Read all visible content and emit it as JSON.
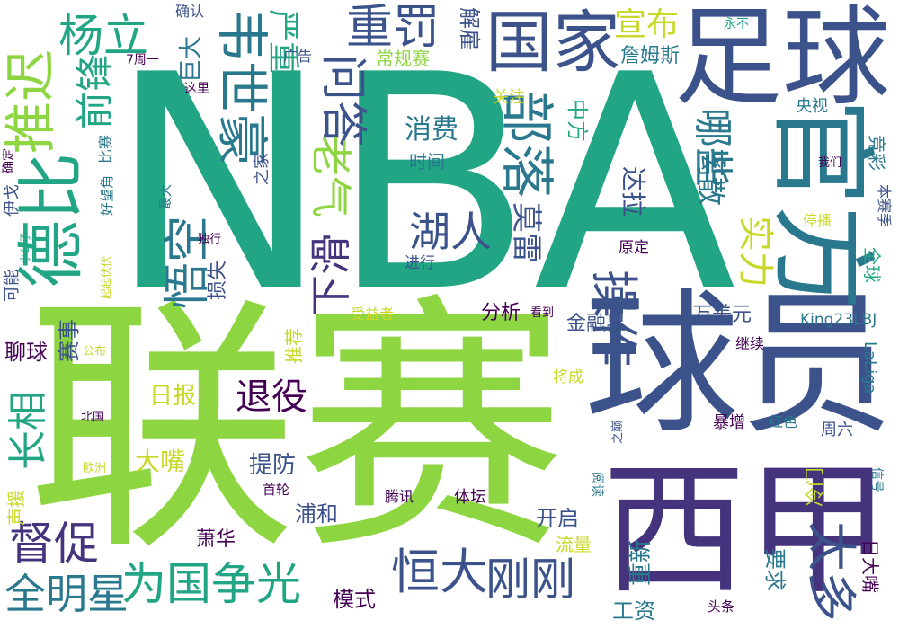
{
  "palette": [
    "#21a585",
    "#8ed641",
    "#3b528b",
    "#46337e",
    "#2a788e",
    "#c8d829",
    "#5ec962",
    "#440154",
    "#3b8b8c"
  ],
  "words": [
    {
      "text": "NBA",
      "color": "#21a585"
    },
    {
      "text": "联赛",
      "color": "#8ed641"
    },
    {
      "text": "球员",
      "color": "#3b528b"
    },
    {
      "text": "西甲",
      "color": "#46337e"
    },
    {
      "text": "足球",
      "color": "#3b528b"
    },
    {
      "text": "官方",
      "color": "#2a788e"
    },
    {
      "text": "国家",
      "color": "#3b528b"
    },
    {
      "text": "德比",
      "color": "#21a585"
    },
    {
      "text": "推迟",
      "color": "#8ed641"
    },
    {
      "text": "部落",
      "color": "#2a788e"
    },
    {
      "text": "韦世豪",
      "color": "#2a788e"
    },
    {
      "text": "重罚",
      "color": "#3b528b"
    },
    {
      "text": "杨立",
      "color": "#21a585"
    },
    {
      "text": "问答",
      "color": "#3b528b"
    },
    {
      "text": "前锋",
      "color": "#21a585"
    },
    {
      "text": "严重",
      "color": "#21a585"
    },
    {
      "text": "宣布",
      "color": "#c8d829"
    },
    {
      "text": "悟空",
      "color": "#2a788e"
    },
    {
      "text": "下滑",
      "color": "#46337e"
    },
    {
      "text": "老气",
      "color": "#8ed641"
    },
    {
      "text": "湖人",
      "color": "#3b528b"
    },
    {
      "text": "操作",
      "color": "#3b528b"
    },
    {
      "text": "哪些",
      "color": "#2a788e"
    },
    {
      "text": "离散",
      "color": "#2a788e"
    },
    {
      "text": "实力",
      "color": "#c8d829"
    },
    {
      "text": "为国争光",
      "color": "#21a585"
    },
    {
      "text": "全明星",
      "color": "#2a788e"
    },
    {
      "text": "督促",
      "color": "#46337e"
    },
    {
      "text": "恒大",
      "color": "#3b528b"
    },
    {
      "text": "刚刚",
      "color": "#3b528b"
    },
    {
      "text": "太多",
      "color": "#3b528b"
    },
    {
      "text": "长相",
      "color": "#21a585"
    },
    {
      "text": "退役",
      "color": "#440154"
    },
    {
      "text": "詹姆斯",
      "color": "#2a788e"
    },
    {
      "text": "解雇",
      "color": "#3b528b"
    },
    {
      "text": "莫雷",
      "color": "#3b528b"
    },
    {
      "text": "达拉",
      "color": "#3b528b"
    },
    {
      "text": "中方",
      "color": "#21a585"
    },
    {
      "text": "消费",
      "color": "#2a788e"
    },
    {
      "text": "时间",
      "color": "#2a788e"
    },
    {
      "text": "巨大",
      "color": "#2a788e"
    },
    {
      "text": "常规赛",
      "color": "#8ed641"
    },
    {
      "text": "关注",
      "color": "#c8d829"
    },
    {
      "text": "广告",
      "color": "#3b528b"
    },
    {
      "text": "确认",
      "color": "#3b528b"
    },
    {
      "text": "永不",
      "color": "#21a585"
    },
    {
      "text": "央视",
      "color": "#2a788e"
    },
    {
      "text": "竞彩",
      "color": "#2a788e"
    },
    {
      "text": "我们",
      "color": "#440154"
    },
    {
      "text": "本赛季",
      "color": "#3b528b"
    },
    {
      "text": "停播",
      "color": "#c8d829"
    },
    {
      "text": "全球",
      "color": "#21a585"
    },
    {
      "text": "原定",
      "color": "#440154"
    },
    {
      "text": "进行",
      "color": "#3b528b"
    },
    {
      "text": "损失",
      "color": "#3b528b"
    },
    {
      "text": "独行",
      "color": "#440154"
    },
    {
      "text": "之家",
      "color": "#3b528b"
    },
    {
      "text": "比赛",
      "color": "#2a788e"
    },
    {
      "text": "好望角",
      "color": "#2a788e"
    },
    {
      "text": "确定",
      "color": "#440154"
    },
    {
      "text": "伊戈",
      "color": "#3b528b"
    },
    {
      "text": "小公子",
      "color": "#21a585"
    },
    {
      "text": "可能",
      "color": "#3b528b"
    },
    {
      "text": "起起伏伏",
      "color": "#c8d829"
    },
    {
      "text": "赛事",
      "color": "#3b528b"
    },
    {
      "text": "分析",
      "color": "#440154"
    },
    {
      "text": "看到",
      "color": "#440154"
    },
    {
      "text": "受益者",
      "color": "#c8d829"
    },
    {
      "text": "金融界",
      "color": "#3b528b"
    },
    {
      "text": "万美元",
      "color": "#3b528b"
    },
    {
      "text": "King23LBJ",
      "color": "#2a788e"
    },
    {
      "text": "LaLiga",
      "color": "#2a788e"
    },
    {
      "text": "继续",
      "color": "#440154"
    },
    {
      "text": "聊球",
      "color": "#440154"
    },
    {
      "text": "推荐",
      "color": "#c8d829"
    },
    {
      "text": "日报",
      "color": "#c8d829"
    },
    {
      "text": "公布",
      "color": "#c8d829"
    },
    {
      "text": "将成",
      "color": "#c8d829"
    },
    {
      "text": "北国",
      "color": "#440154"
    },
    {
      "text": "之巅",
      "color": "#3b528b"
    },
    {
      "text": "暴增",
      "color": "#440154"
    },
    {
      "text": "红色",
      "color": "#2a788e"
    },
    {
      "text": "周六",
      "color": "#3b528b"
    },
    {
      "text": "大嘴",
      "color": "#c8d829"
    },
    {
      "text": "提防",
      "color": "#3b528b"
    },
    {
      "text": "欧洲",
      "color": "#c8d829"
    },
    {
      "text": "声援",
      "color": "#c8d829"
    },
    {
      "text": "首轮",
      "color": "#440154"
    },
    {
      "text": "腾讯",
      "color": "#440154"
    },
    {
      "text": "体坛",
      "color": "#440154"
    },
    {
      "text": "阅读",
      "color": "#2a788e"
    },
    {
      "text": "冷门",
      "color": "#c8d829"
    },
    {
      "text": "信号",
      "color": "#2a788e"
    },
    {
      "text": "浦和",
      "color": "#3b528b"
    },
    {
      "text": "开启",
      "color": "#3b528b"
    },
    {
      "text": "萧华",
      "color": "#440154"
    },
    {
      "text": "流量",
      "color": "#c8d829"
    },
    {
      "text": "日大嘴",
      "color": "#440154"
    },
    {
      "text": "重新",
      "color": "#2a788e"
    },
    {
      "text": "要求",
      "color": "#2a788e"
    },
    {
      "text": "头条",
      "color": "#440154"
    },
    {
      "text": "工资",
      "color": "#2a788e"
    },
    {
      "text": "模式",
      "color": "#440154"
    },
    {
      "text": "这里",
      "color": "#440154"
    },
    {
      "text": "最大",
      "color": "#2a788e"
    },
    {
      "text": "7周一",
      "color": "#440154"
    }
  ]
}
